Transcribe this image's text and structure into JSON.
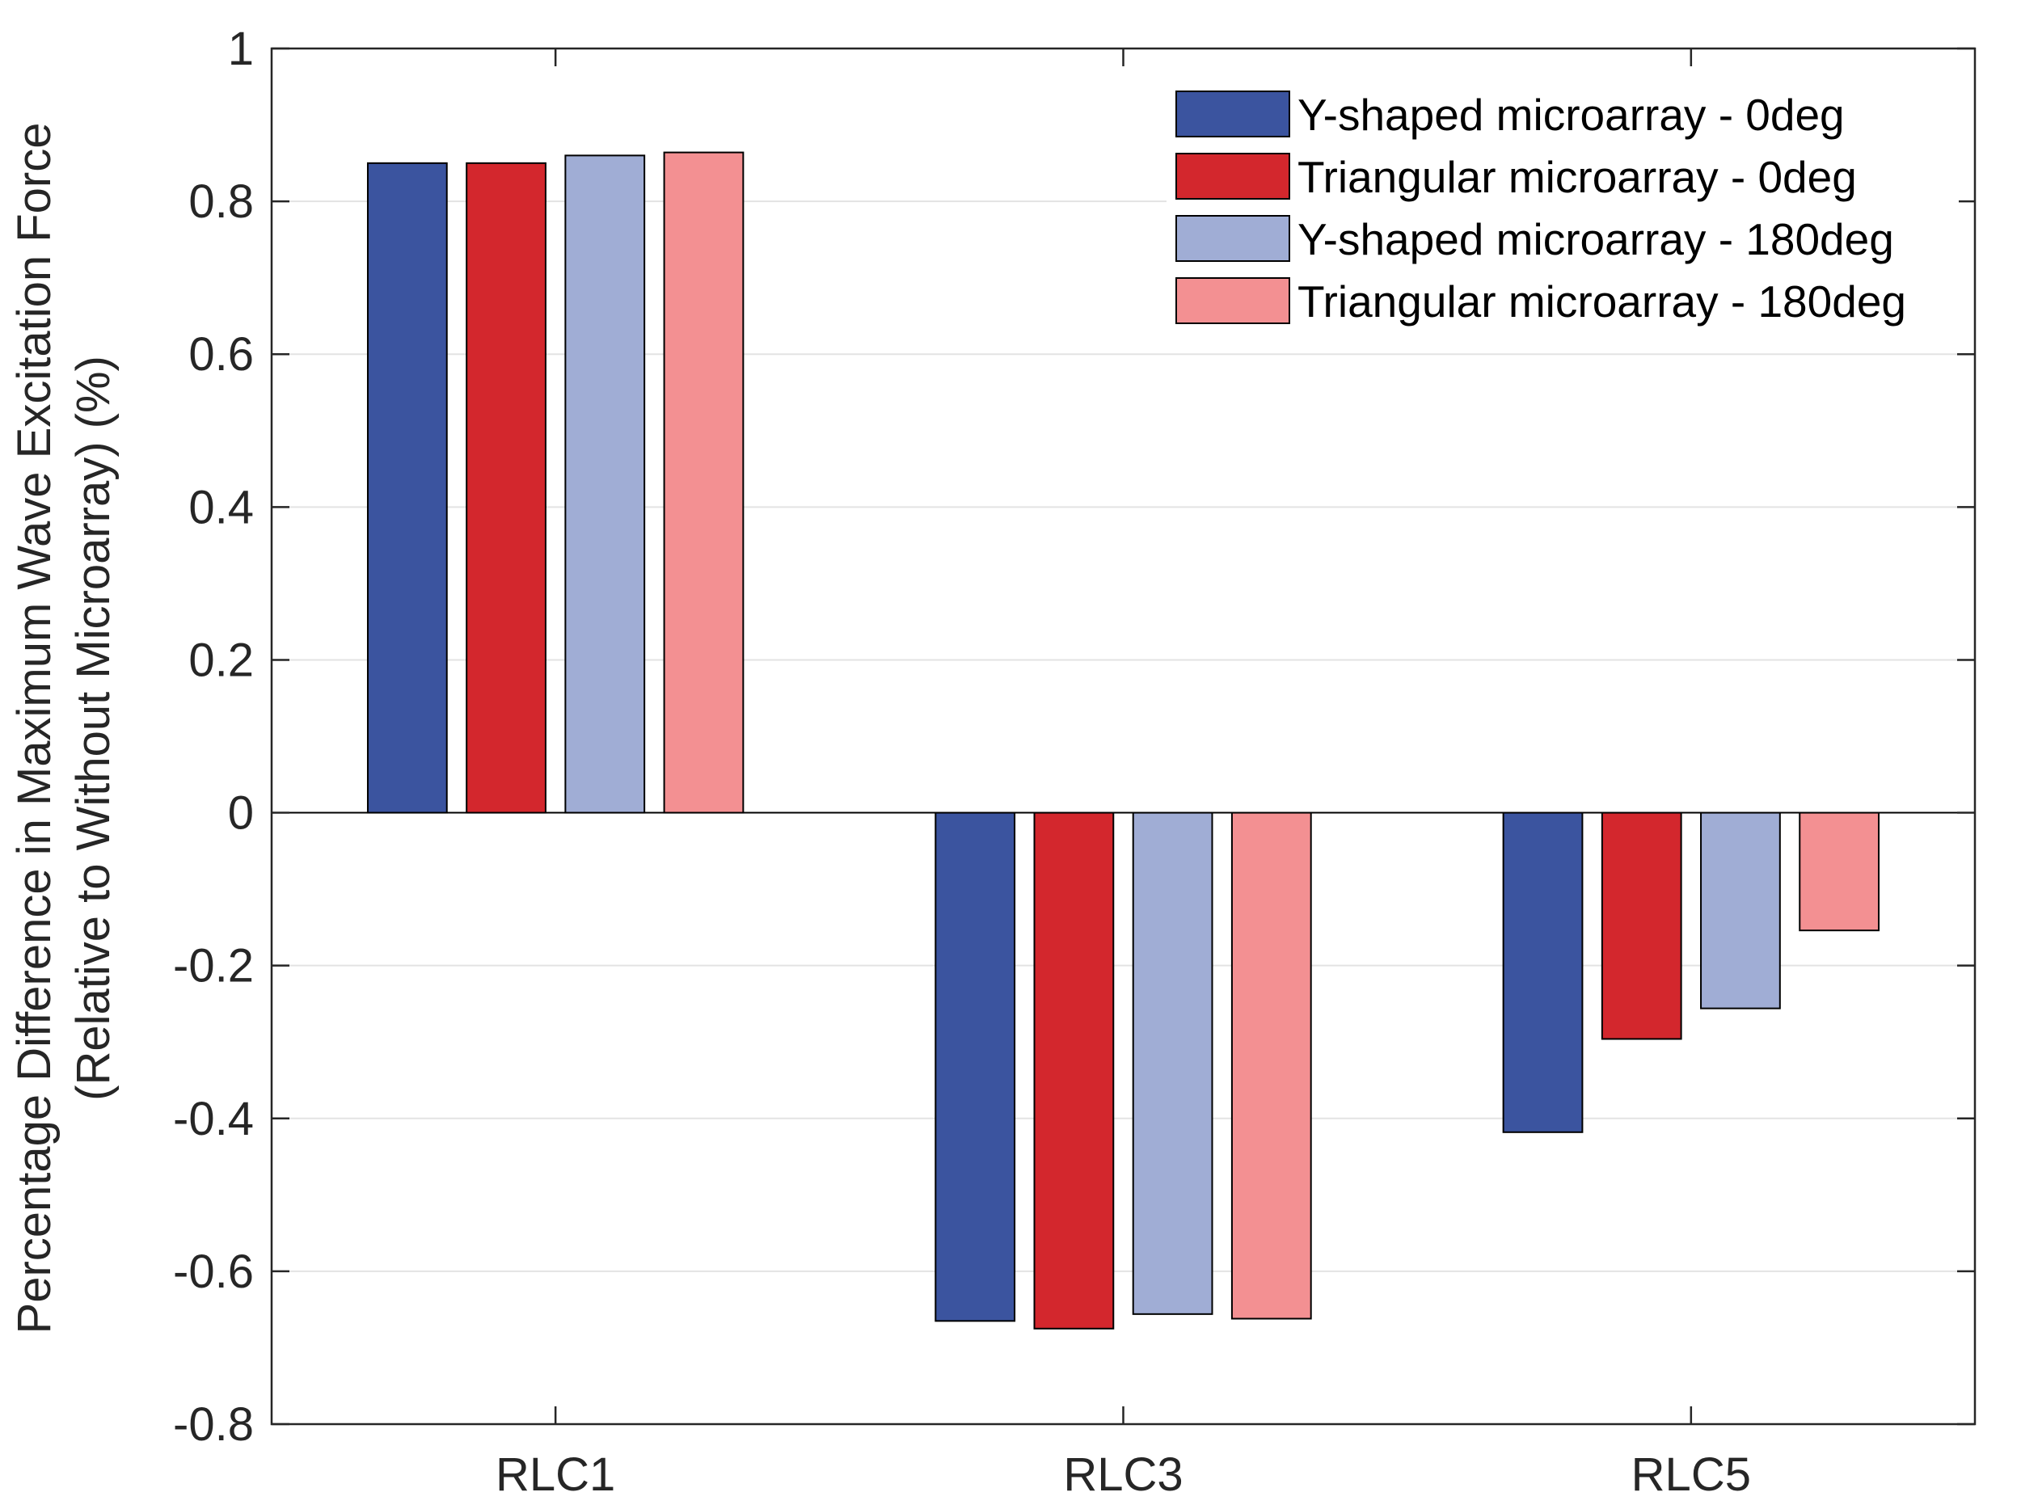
{
  "chart_data": {
    "type": "bar",
    "title": "",
    "xlabel": "",
    "ylabel_line1": "Percentage Difference in Maximum Wave Excitation Force",
    "ylabel_line2": "(Relative to Without Microarray) (%)",
    "categories": [
      "RLC1",
      "RLC3",
      "RLC5"
    ],
    "ylim": [
      -0.8,
      1
    ],
    "yticks": [
      1,
      0.8,
      0.6,
      0.4,
      0.2,
      0,
      -0.2,
      -0.4,
      -0.6,
      -0.8
    ],
    "ytick_labels": [
      "1",
      "0.8",
      "0.6",
      "0.4",
      "0.2",
      "0",
      "-0.2",
      "-0.4",
      "-0.6",
      "-0.8"
    ],
    "grid": true,
    "legend_position": "top-right",
    "series": [
      {
        "name": "Y-shaped microarray - 0deg",
        "color": "#3b549f",
        "values": [
          0.85,
          -0.665,
          -0.418
        ]
      },
      {
        "name": "Triangular microarray - 0deg",
        "color": "#d3272d",
        "values": [
          0.85,
          -0.675,
          -0.296
        ]
      },
      {
        "name": "Y-shaped microarray - 180deg",
        "color": "#a0add5",
        "values": [
          0.86,
          -0.656,
          -0.256
        ]
      },
      {
        "name": "Triangular microarray - 180deg",
        "color": "#f39092",
        "values": [
          0.864,
          -0.662,
          -0.154
        ]
      }
    ]
  }
}
